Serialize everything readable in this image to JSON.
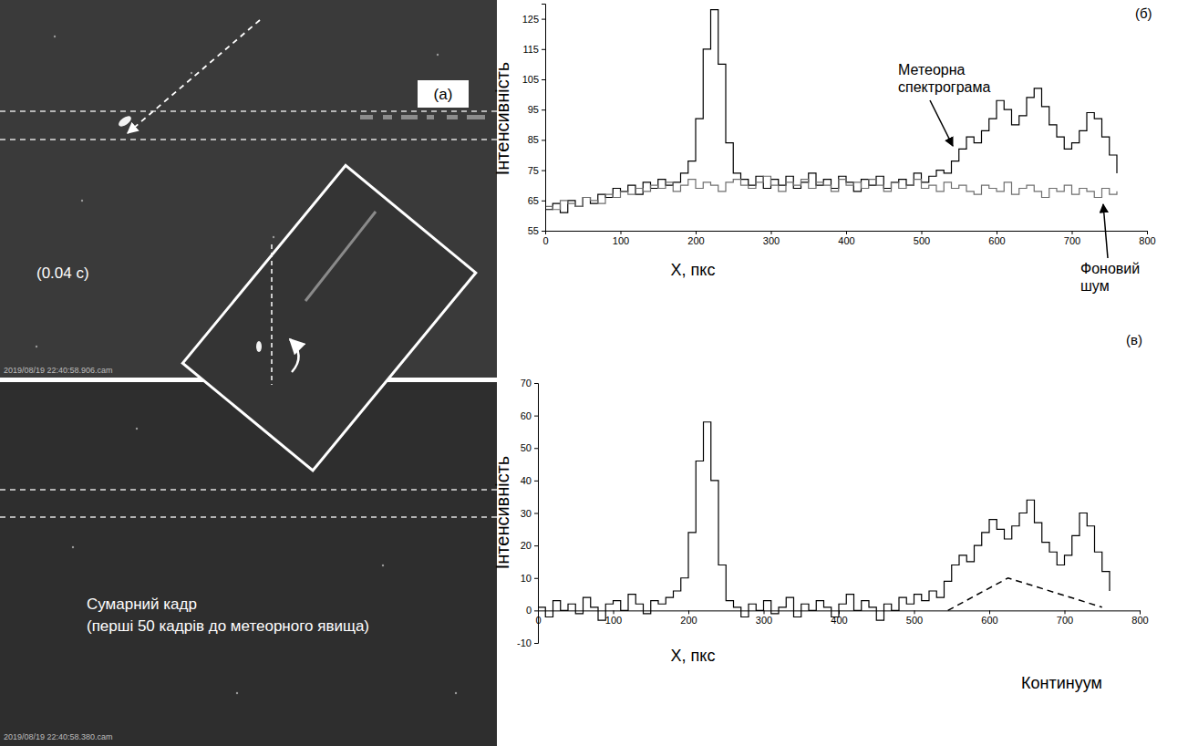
{
  "image_panel": {
    "label": "(a)",
    "exposure": "(0.04 с)",
    "top_timestamp": "2019/08/19 22:40:58.906.cam",
    "bottom_caption": [
      "Сумарний кадр",
      "(перші 50 кадрів до метеорного явища)"
    ],
    "bottom_timestamp": "2019/08/19 22:40:58.380.cam"
  },
  "chart_data": [
    {
      "type": "line",
      "title": "(б)",
      "x_label": "X, пкс",
      "y_label": "Інтенсивність",
      "annotations": [
        "Метеорна спектрограма",
        "Фоновий шум"
      ],
      "grid": false,
      "x": [
        0,
        10,
        20,
        30,
        40,
        50,
        60,
        70,
        80,
        90,
        100,
        110,
        120,
        130,
        140,
        150,
        160,
        170,
        180,
        190,
        200,
        210,
        220,
        230,
        240,
        250,
        260,
        270,
        280,
        290,
        300,
        310,
        320,
        330,
        340,
        350,
        360,
        370,
        380,
        390,
        400,
        410,
        420,
        430,
        440,
        450,
        460,
        470,
        480,
        490,
        500,
        510,
        520,
        530,
        540,
        550,
        560,
        570,
        580,
        590,
        600,
        610,
        620,
        630,
        640,
        650,
        660,
        670,
        680,
        690,
        700,
        710,
        720,
        730,
        740,
        750,
        760
      ],
      "xlim": [
        0,
        800
      ],
      "xticks": [
        0,
        100,
        200,
        300,
        400,
        500,
        600,
        700,
        800
      ],
      "ylim": [
        55,
        130
      ],
      "yticks": [
        55,
        65,
        75,
        85,
        95,
        105,
        115,
        125
      ],
      "series": [
        {
          "color": "#000000",
          "line_style": "solid",
          "values": [
            62,
            64,
            61,
            65,
            63,
            66,
            64,
            67,
            66,
            69,
            68,
            70,
            67,
            71,
            69,
            72,
            70,
            71,
            74,
            78,
            92,
            115,
            128,
            110,
            84,
            74,
            72,
            70,
            73,
            69,
            72,
            70,
            73,
            69,
            71,
            74,
            70,
            72,
            69,
            73,
            71,
            68,
            72,
            70,
            73,
            69,
            71,
            72,
            70,
            74,
            71,
            73,
            75,
            74,
            78,
            82,
            86,
            84,
            88,
            92,
            98,
            95,
            90,
            93,
            99,
            102,
            96,
            90,
            86,
            82,
            84,
            88,
            94,
            92,
            86,
            80,
            74
          ]
        },
        {
          "color": "#6e6e6e",
          "line_style": "solid",
          "values": [
            63,
            62,
            65,
            64,
            63,
            66,
            65,
            64,
            67,
            66,
            68,
            67,
            69,
            68,
            70,
            69,
            71,
            68,
            70,
            72,
            69,
            71,
            70,
            68,
            71,
            72,
            70,
            69,
            71,
            73,
            70,
            68,
            71,
            70,
            72,
            69,
            71,
            70,
            68,
            72,
            70,
            71,
            69,
            72,
            70,
            68,
            71,
            69,
            70,
            72,
            69,
            70,
            68,
            71,
            69,
            70,
            68,
            67,
            70,
            69,
            68,
            71,
            67,
            69,
            70,
            68,
            66,
            69,
            68,
            70,
            67,
            69,
            68,
            66,
            69,
            67,
            68
          ]
        }
      ]
    },
    {
      "type": "line",
      "title": "(в)",
      "x_label": "X, пкс",
      "y_label": "Інтенсивність",
      "annotations": [
        "Континуум"
      ],
      "grid": false,
      "x": [
        0,
        10,
        20,
        30,
        40,
        50,
        60,
        70,
        80,
        90,
        100,
        110,
        120,
        130,
        140,
        150,
        160,
        170,
        180,
        190,
        200,
        210,
        220,
        230,
        240,
        250,
        260,
        270,
        280,
        290,
        300,
        310,
        320,
        330,
        340,
        350,
        360,
        370,
        380,
        390,
        400,
        410,
        420,
        430,
        440,
        450,
        460,
        470,
        480,
        490,
        500,
        510,
        520,
        530,
        540,
        550,
        560,
        570,
        580,
        590,
        600,
        610,
        620,
        630,
        640,
        650,
        660,
        670,
        680,
        690,
        700,
        710,
        720,
        730,
        740,
        750,
        760
      ],
      "xlim": [
        0,
        800
      ],
      "xticks": [
        0,
        100,
        200,
        300,
        400,
        500,
        600,
        700,
        800
      ],
      "ylim": [
        -10,
        70
      ],
      "yticks": [
        -10,
        0,
        10,
        20,
        30,
        40,
        50,
        60,
        70
      ],
      "series": [
        {
          "color": "#000000",
          "line_style": "solid",
          "values": [
            1,
            -2,
            3,
            0,
            2,
            -1,
            4,
            1,
            -3,
            2,
            3,
            0,
            5,
            2,
            -1,
            3,
            2,
            4,
            6,
            10,
            24,
            46,
            58,
            40,
            14,
            3,
            1,
            -2,
            2,
            0,
            3,
            -1,
            1,
            4,
            -2,
            2,
            0,
            3,
            1,
            -2,
            2,
            5,
            0,
            3,
            1,
            -3,
            2,
            0,
            4,
            2,
            5,
            3,
            6,
            4,
            9,
            14,
            17,
            15,
            20,
            24,
            28,
            25,
            22,
            26,
            30,
            34,
            27,
            21,
            18,
            14,
            17,
            23,
            30,
            26,
            18,
            12,
            6
          ]
        },
        {
          "color": "#000000",
          "line_style": "dashed",
          "x": [
            545,
            625,
            750
          ],
          "values": [
            0,
            10,
            1
          ]
        }
      ]
    }
  ]
}
